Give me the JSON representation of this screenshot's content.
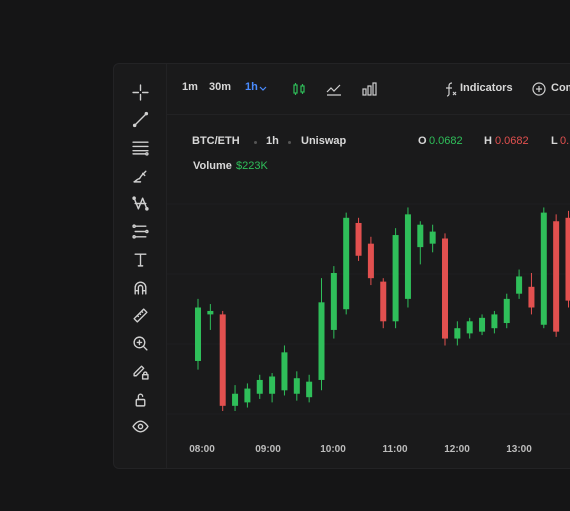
{
  "toolbar": {
    "timeframes": [
      "1m",
      "30m",
      "1h"
    ],
    "active_timeframe": "1h",
    "indicators_label": "Indicators",
    "compare_label": "Com"
  },
  "tools": [
    "crosshair-icon",
    "trendline-icon",
    "horizontal-lines-icon",
    "brush-icon",
    "pattern-icon",
    "fib-levels-icon",
    "text-icon",
    "magnet-icon",
    "ruler-icon",
    "zoom-in-icon",
    "lock-pen-icon",
    "unlock-icon",
    "eye-icon"
  ],
  "legend": {
    "pair": "BTC/ETH",
    "interval": "1h",
    "exchange": "Uniswap",
    "open_label": "O",
    "open_value": "0.0682",
    "high_label": "H",
    "high_value": "0.0682",
    "low_label": "L",
    "low_value": "0.",
    "volume_label": "Volume",
    "volume_value": "$223K"
  },
  "colors": {
    "up": "#2fbf5a",
    "down": "#e2504f",
    "accent": "#4a8cff"
  },
  "chart_data": {
    "type": "candlestick",
    "x_ticks": [
      "08:00",
      "09:00",
      "10:00",
      "11:00",
      "12:00",
      "13:00"
    ],
    "candles": [
      {
        "o": 2.9,
        "h": 6.5,
        "l": 2.4,
        "c": 6.0
      },
      {
        "o": 5.6,
        "h": 6.2,
        "l": 4.7,
        "c": 5.8
      },
      {
        "o": 5.6,
        "h": 5.8,
        "l": 0.0,
        "c": 0.3
      },
      {
        "o": 0.3,
        "h": 1.5,
        "l": 0.0,
        "c": 1.0
      },
      {
        "o": 0.5,
        "h": 1.6,
        "l": 0.2,
        "c": 1.3
      },
      {
        "o": 1.0,
        "h": 2.1,
        "l": 0.7,
        "c": 1.8
      },
      {
        "o": 1.0,
        "h": 2.2,
        "l": 0.5,
        "c": 2.0
      },
      {
        "o": 1.2,
        "h": 3.8,
        "l": 0.9,
        "c": 3.4
      },
      {
        "o": 1.0,
        "h": 2.3,
        "l": 0.6,
        "c": 1.9
      },
      {
        "o": 0.8,
        "h": 2.1,
        "l": 0.5,
        "c": 1.7
      },
      {
        "o": 1.8,
        "h": 7.7,
        "l": 1.2,
        "c": 6.3
      },
      {
        "o": 4.7,
        "h": 8.4,
        "l": 4.2,
        "c": 8.0
      },
      {
        "o": 5.9,
        "h": 11.5,
        "l": 5.6,
        "c": 11.2
      },
      {
        "o": 10.9,
        "h": 11.2,
        "l": 8.7,
        "c": 9.0
      },
      {
        "o": 9.7,
        "h": 10.1,
        "l": 7.3,
        "c": 7.7
      },
      {
        "o": 7.5,
        "h": 7.7,
        "l": 4.8,
        "c": 5.2
      },
      {
        "o": 5.2,
        "h": 10.6,
        "l": 4.8,
        "c": 10.2
      },
      {
        "o": 6.5,
        "h": 11.8,
        "l": 6.0,
        "c": 11.4
      },
      {
        "o": 9.5,
        "h": 11.0,
        "l": 8.5,
        "c": 10.8
      },
      {
        "o": 9.7,
        "h": 10.8,
        "l": 9.2,
        "c": 10.4
      },
      {
        "o": 10.0,
        "h": 10.3,
        "l": 3.8,
        "c": 4.2
      },
      {
        "o": 4.2,
        "h": 5.2,
        "l": 3.8,
        "c": 4.8
      },
      {
        "o": 4.5,
        "h": 5.4,
        "l": 4.2,
        "c": 5.2
      },
      {
        "o": 4.6,
        "h": 5.6,
        "l": 4.4,
        "c": 5.4
      },
      {
        "o": 4.8,
        "h": 5.8,
        "l": 4.5,
        "c": 5.6
      },
      {
        "o": 5.1,
        "h": 6.8,
        "l": 4.8,
        "c": 6.5
      },
      {
        "o": 6.8,
        "h": 8.2,
        "l": 6.5,
        "c": 7.8
      },
      {
        "o": 7.2,
        "h": 8.0,
        "l": 5.6,
        "c": 6.0
      },
      {
        "o": 5.0,
        "h": 11.8,
        "l": 4.8,
        "c": 11.5
      },
      {
        "o": 11.0,
        "h": 11.4,
        "l": 4.3,
        "c": 4.6
      },
      {
        "o": 11.2,
        "h": 11.6,
        "l": 6.0,
        "c": 6.4
      }
    ]
  }
}
